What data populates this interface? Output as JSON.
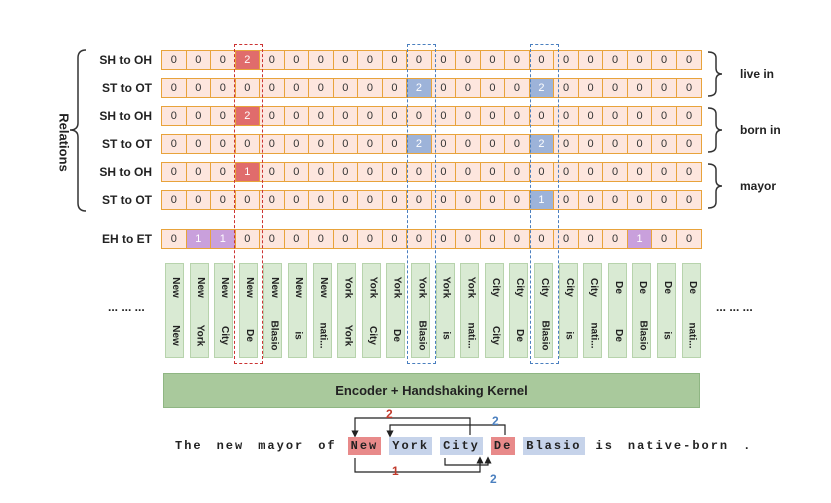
{
  "relations_label": "Relations",
  "rows": [
    {
      "label": "SH to OH",
      "cells": [
        "0",
        "0",
        "0",
        "2",
        "0",
        "0",
        "0",
        "0",
        "0",
        "0",
        "0",
        "0",
        "0",
        "0",
        "0",
        "0",
        "0",
        "0",
        "0",
        "0",
        "0",
        "0"
      ],
      "hl": {
        "3": "red"
      }
    },
    {
      "label": "ST to OT",
      "cells": [
        "0",
        "0",
        "0",
        "0",
        "0",
        "0",
        "0",
        "0",
        "0",
        "0",
        "2",
        "0",
        "0",
        "0",
        "0",
        "2",
        "0",
        "0",
        "0",
        "0",
        "0",
        "0"
      ],
      "hl": {
        "10": "blue",
        "15": "blue"
      }
    },
    {
      "label": "SH to OH",
      "cells": [
        "0",
        "0",
        "0",
        "2",
        "0",
        "0",
        "0",
        "0",
        "0",
        "0",
        "0",
        "0",
        "0",
        "0",
        "0",
        "0",
        "0",
        "0",
        "0",
        "0",
        "0",
        "0"
      ],
      "hl": {
        "3": "red"
      }
    },
    {
      "label": "ST to OT",
      "cells": [
        "0",
        "0",
        "0",
        "0",
        "0",
        "0",
        "0",
        "0",
        "0",
        "0",
        "2",
        "0",
        "0",
        "0",
        "0",
        "2",
        "0",
        "0",
        "0",
        "0",
        "0",
        "0"
      ],
      "hl": {
        "10": "blue",
        "15": "blue"
      }
    },
    {
      "label": "SH to OH",
      "cells": [
        "0",
        "0",
        "0",
        "1",
        "0",
        "0",
        "0",
        "0",
        "0",
        "0",
        "0",
        "0",
        "0",
        "0",
        "0",
        "0",
        "0",
        "0",
        "0",
        "0",
        "0",
        "0"
      ],
      "hl": {
        "3": "red"
      }
    },
    {
      "label": "ST to OT",
      "cells": [
        "0",
        "0",
        "0",
        "0",
        "0",
        "0",
        "0",
        "0",
        "0",
        "0",
        "0",
        "0",
        "0",
        "0",
        "0",
        "1",
        "0",
        "0",
        "0",
        "0",
        "0",
        "0"
      ],
      "hl": {
        "15": "blue"
      }
    }
  ],
  "eh_row": {
    "label": "EH to ET",
    "cells": [
      "0",
      "1",
      "1",
      "0",
      "0",
      "0",
      "0",
      "0",
      "0",
      "0",
      "0",
      "0",
      "0",
      "0",
      "0",
      "0",
      "0",
      "0",
      "0",
      "1",
      "0",
      "0"
    ],
    "hl": {
      "1": "purple",
      "2": "purple",
      "19": "purple"
    }
  },
  "relations": [
    "live in",
    "born in",
    "mayor"
  ],
  "token_pairs": [
    [
      "New",
      "New"
    ],
    [
      "New",
      "York"
    ],
    [
      "New",
      "City"
    ],
    [
      "New",
      "De"
    ],
    [
      "New",
      "Blasio"
    ],
    [
      "New",
      "is"
    ],
    [
      "New",
      "nati..."
    ],
    [
      "York",
      "York"
    ],
    [
      "York",
      "City"
    ],
    [
      "York",
      "De"
    ],
    [
      "York",
      "Blasio"
    ],
    [
      "York",
      "is"
    ],
    [
      "York",
      "nati..."
    ],
    [
      "City",
      "City"
    ],
    [
      "City",
      "De"
    ],
    [
      "City",
      "Blasio"
    ],
    [
      "City",
      "is"
    ],
    [
      "City",
      "nati..."
    ],
    [
      "De",
      "De"
    ],
    [
      "De",
      "Blasio"
    ],
    [
      "De",
      "is"
    ],
    [
      "De",
      "nati..."
    ]
  ],
  "ellipsis_left": "... ... ...",
  "ellipsis_right": "... ... ...",
  "encoder_label": "Encoder + Handshaking Kernel",
  "sentence": [
    {
      "text": "The",
      "style": ""
    },
    {
      "text": "new",
      "style": ""
    },
    {
      "text": "mayor",
      "style": ""
    },
    {
      "text": "of",
      "style": ""
    },
    {
      "text": "New",
      "style": "red"
    },
    {
      "text": "York",
      "style": "blue"
    },
    {
      "text": "City",
      "style": "blue"
    },
    {
      "text": "De",
      "style": "red"
    },
    {
      "text": "Blasio",
      "style": "blue"
    },
    {
      "text": "is",
      "style": ""
    },
    {
      "text": "native-born",
      "style": ""
    },
    {
      "text": ".",
      "style": ""
    }
  ],
  "arc_labels": {
    "top_red": "2",
    "top_blue": "2",
    "bottom_red": "1",
    "bottom_blue": "2"
  },
  "colors": {
    "red": "#e06c6c",
    "blue": "#9db3d9",
    "purple": "#c9a0dc",
    "cell_bg": "#fde6de",
    "border": "#e8a33b",
    "token_bg": "#d9ead3",
    "encoder_bg": "#a9c99c"
  }
}
